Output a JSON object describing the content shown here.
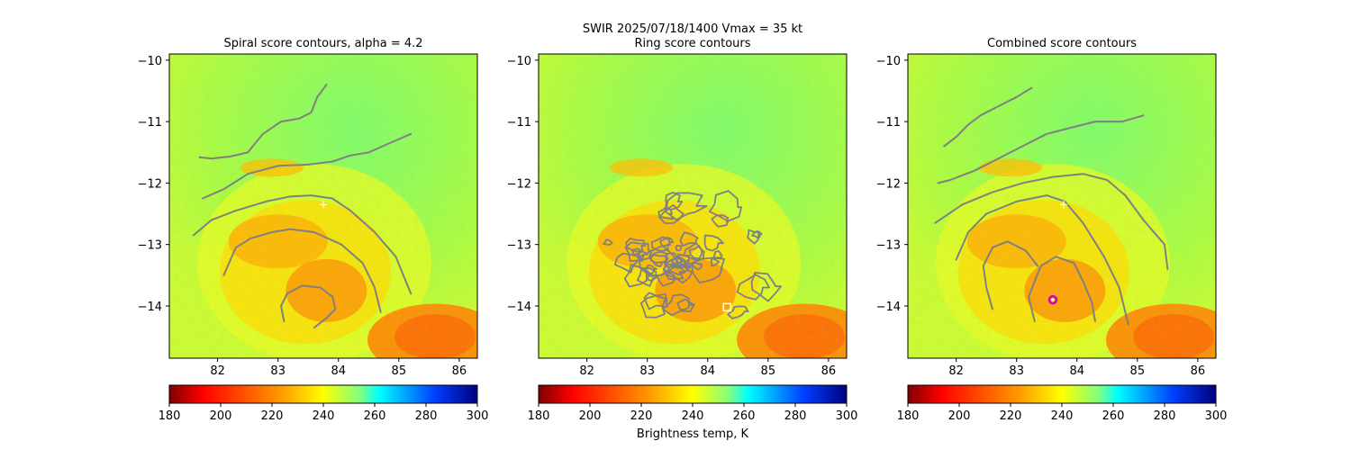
{
  "figure": {
    "suptitle_line1": "SWIR  2025/07/18/1400    Vmax = 35 kt",
    "colorbar_label": "Brightness temp, K"
  },
  "colormap": {
    "name": "jet_r",
    "stops": [
      "#800000",
      "#ff0000",
      "#ff8000",
      "#ffff00",
      "#80ff80",
      "#00ffff",
      "#0080ff",
      "#0000ff",
      "#000080"
    ]
  },
  "chart_data": [
    {
      "type": "heatmap",
      "title": "Spiral score contours, alpha =  4.2",
      "xlim": [
        81.2,
        86.3
      ],
      "ylim": [
        -14.85,
        -9.9
      ],
      "x_ticks": [
        82,
        83,
        84,
        85,
        86
      ],
      "y_ticks": [
        -10,
        -11,
        -12,
        -13,
        -14
      ],
      "colorbar": {
        "min": 180,
        "max": 300,
        "ticks": [
          180,
          200,
          220,
          240,
          260,
          280,
          300
        ]
      },
      "markers": [
        {
          "type": "plus",
          "color": "#ffffff",
          "x": 83.75,
          "y": -12.35
        }
      ],
      "contours": [
        [
          [
            83.8,
            -10.4
          ],
          [
            83.65,
            -10.6
          ],
          [
            83.55,
            -10.85
          ],
          [
            83.35,
            -10.95
          ],
          [
            83.05,
            -11.0
          ],
          [
            82.75,
            -11.2
          ],
          [
            82.5,
            -11.5
          ],
          [
            82.2,
            -11.57
          ],
          [
            81.9,
            -11.6
          ],
          [
            81.7,
            -11.58
          ]
        ],
        [
          [
            85.2,
            -11.2
          ],
          [
            84.85,
            -11.35
          ],
          [
            84.5,
            -11.5
          ],
          [
            84.2,
            -11.55
          ],
          [
            83.9,
            -11.65
          ],
          [
            83.5,
            -11.7
          ],
          [
            83.0,
            -11.72
          ],
          [
            82.5,
            -11.85
          ],
          [
            82.1,
            -12.1
          ],
          [
            81.75,
            -12.25
          ]
        ],
        [
          [
            85.2,
            -13.8
          ],
          [
            84.95,
            -13.2
          ],
          [
            84.6,
            -12.8
          ],
          [
            84.2,
            -12.45
          ],
          [
            83.9,
            -12.25
          ],
          [
            83.55,
            -12.2
          ],
          [
            83.2,
            -12.22
          ],
          [
            82.8,
            -12.3
          ],
          [
            82.3,
            -12.45
          ],
          [
            81.9,
            -12.6
          ],
          [
            81.6,
            -12.85
          ]
        ],
        [
          [
            84.7,
            -14.1
          ],
          [
            84.6,
            -13.7
          ],
          [
            84.4,
            -13.3
          ],
          [
            84.05,
            -13.0
          ],
          [
            83.6,
            -12.8
          ],
          [
            83.2,
            -12.75
          ],
          [
            82.9,
            -12.8
          ],
          [
            82.55,
            -12.9
          ],
          [
            82.3,
            -13.05
          ],
          [
            82.1,
            -13.5
          ]
        ],
        [
          [
            83.1,
            -14.25
          ],
          [
            83.05,
            -14.0
          ],
          [
            83.15,
            -13.8
          ],
          [
            83.4,
            -13.67
          ],
          [
            83.7,
            -13.7
          ],
          [
            83.9,
            -13.85
          ],
          [
            83.95,
            -14.05
          ],
          [
            83.8,
            -14.2
          ],
          [
            83.6,
            -14.35
          ]
        ]
      ]
    },
    {
      "type": "heatmap",
      "title": "Ring score contours",
      "xlim": [
        81.2,
        86.3
      ],
      "ylim": [
        -14.85,
        -9.9
      ],
      "x_ticks": [
        82,
        83,
        84,
        85,
        86
      ],
      "y_ticks": [
        -10,
        -11,
        -12,
        -13,
        -14
      ],
      "colorbar": {
        "min": 180,
        "max": 300,
        "ticks": [
          180,
          200,
          220,
          240,
          260,
          280,
          300
        ]
      },
      "markers": [
        {
          "type": "square",
          "color": "#ffffff",
          "x": 84.32,
          "y": -14.02
        }
      ],
      "contours": []
    },
    {
      "type": "heatmap",
      "title": "Combined score contours",
      "xlim": [
        81.2,
        86.3
      ],
      "ylim": [
        -14.85,
        -9.9
      ],
      "x_ticks": [
        82,
        83,
        84,
        85,
        86
      ],
      "y_ticks": [
        -10,
        -11,
        -12,
        -13,
        -14
      ],
      "colorbar": {
        "min": 180,
        "max": 300,
        "ticks": [
          180,
          200,
          220,
          240,
          260,
          280,
          300
        ]
      },
      "markers": [
        {
          "type": "plus",
          "color": "#ffffff",
          "x": 83.78,
          "y": -12.35
        },
        {
          "type": "circle",
          "color": "#cc00cc",
          "x": 83.6,
          "y": -13.9
        }
      ],
      "contours": [
        [
          [
            83.25,
            -10.45
          ],
          [
            83.0,
            -10.6
          ],
          [
            82.7,
            -10.75
          ],
          [
            82.4,
            -10.9
          ],
          [
            82.2,
            -11.05
          ],
          [
            82.0,
            -11.25
          ],
          [
            81.8,
            -11.4
          ]
        ],
        [
          [
            85.1,
            -10.9
          ],
          [
            84.75,
            -11.0
          ],
          [
            84.3,
            -11.0
          ],
          [
            83.9,
            -11.1
          ],
          [
            83.5,
            -11.2
          ],
          [
            83.1,
            -11.4
          ],
          [
            82.7,
            -11.6
          ],
          [
            82.3,
            -11.8
          ],
          [
            81.9,
            -11.95
          ],
          [
            81.7,
            -12.0
          ]
        ],
        [
          [
            85.5,
            -13.4
          ],
          [
            85.45,
            -13.0
          ],
          [
            85.1,
            -12.6
          ],
          [
            84.8,
            -12.2
          ],
          [
            84.5,
            -11.95
          ],
          [
            84.1,
            -11.85
          ],
          [
            83.6,
            -11.9
          ],
          [
            83.1,
            -12.0
          ],
          [
            82.6,
            -12.15
          ],
          [
            82.1,
            -12.35
          ],
          [
            81.65,
            -12.65
          ]
        ],
        [
          [
            84.85,
            -14.3
          ],
          [
            84.7,
            -13.7
          ],
          [
            84.45,
            -13.2
          ],
          [
            84.1,
            -12.65
          ],
          [
            83.8,
            -12.3
          ],
          [
            83.5,
            -12.2
          ],
          [
            83.0,
            -12.3
          ],
          [
            82.5,
            -12.5
          ],
          [
            82.2,
            -12.8
          ],
          [
            82.0,
            -13.25
          ]
        ],
        [
          [
            83.3,
            -14.25
          ],
          [
            83.2,
            -13.85
          ],
          [
            83.4,
            -13.35
          ],
          [
            83.65,
            -13.2
          ],
          [
            83.95,
            -13.3
          ],
          [
            84.1,
            -13.6
          ],
          [
            84.25,
            -13.95
          ],
          [
            84.3,
            -14.25
          ]
        ],
        [
          [
            82.6,
            -14.05
          ],
          [
            82.5,
            -13.7
          ],
          [
            82.45,
            -13.35
          ],
          [
            82.6,
            -13.05
          ],
          [
            82.85,
            -12.95
          ],
          [
            83.15,
            -13.1
          ],
          [
            83.35,
            -13.35
          ]
        ]
      ]
    }
  ]
}
